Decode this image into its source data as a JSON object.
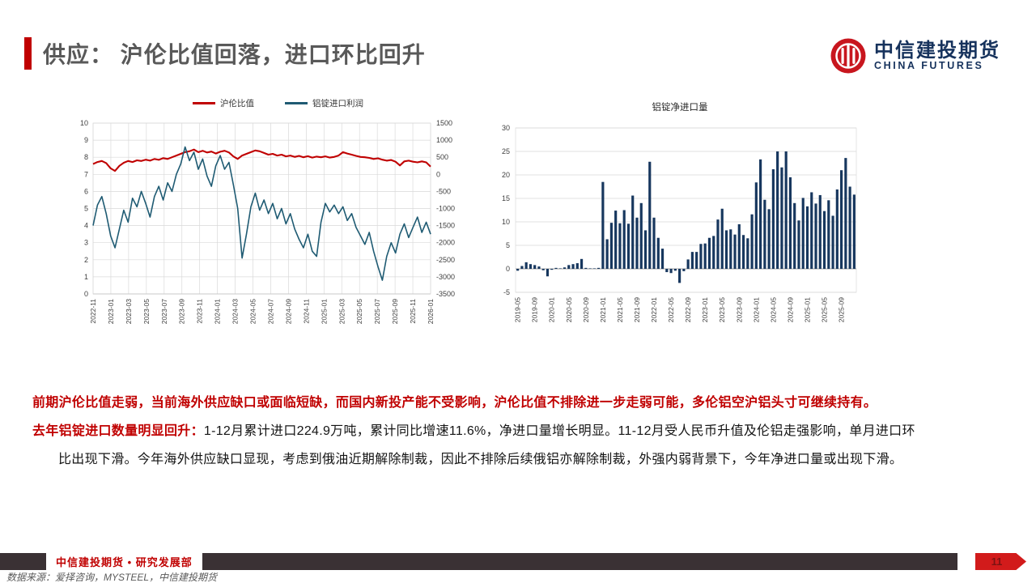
{
  "header": {
    "title": "供应： 沪伦比值回落，进口环比回升",
    "accent_color": "#c00000",
    "title_color": "#595959"
  },
  "logo": {
    "cn": "中信建投期货",
    "en": "CHINA FUTURES",
    "text_color": "#16325c",
    "mark_color": "#c8161e"
  },
  "chart_data": [
    {
      "type": "line",
      "legend_position": "top",
      "x_ticks": [
        "2022-11",
        "2023-01",
        "2023-03",
        "2023-05",
        "2023-07",
        "2023-09",
        "2023-11",
        "2024-01",
        "2024-03",
        "2024-05",
        "2024-07",
        "2024-09",
        "2024-11",
        "2025-01",
        "2025-03",
        "2025-05",
        "2025-07",
        "2025-09",
        "2025-11",
        "2026-01"
      ],
      "left_axis": {
        "min": 0,
        "max": 10,
        "step": 1
      },
      "right_axis": {
        "min": -3500,
        "max": 1500,
        "step": 500
      },
      "grid": "both",
      "series": [
        {
          "name": "沪伦比值",
          "color": "#c00000",
          "axis": "left",
          "values": [
            7.6,
            7.72,
            7.78,
            7.66,
            7.35,
            7.2,
            7.5,
            7.68,
            7.78,
            7.72,
            7.82,
            7.78,
            7.86,
            7.8,
            7.9,
            7.85,
            7.95,
            7.9,
            8.0,
            8.1,
            8.2,
            8.3,
            8.35,
            8.45,
            8.3,
            8.38,
            8.28,
            8.33,
            8.22,
            8.32,
            8.38,
            8.28,
            8.05,
            7.9,
            8.1,
            8.2,
            8.3,
            8.4,
            8.35,
            8.25,
            8.15,
            8.2,
            8.1,
            8.15,
            8.05,
            8.1,
            8.02,
            8.08,
            8.0,
            8.06,
            7.98,
            8.04,
            8.0,
            8.05,
            7.98,
            8.02,
            8.1,
            8.3,
            8.22,
            8.15,
            8.08,
            8.02,
            8.0,
            7.96,
            7.9,
            7.94,
            7.86,
            7.8,
            7.84,
            7.74,
            7.52,
            7.76,
            7.8,
            7.74,
            7.7,
            7.76,
            7.7,
            7.45
          ]
        },
        {
          "name": "铝锭进口利润",
          "color": "#1f5b73",
          "axis": "right",
          "values": [
            -1500,
            -900,
            -650,
            -1150,
            -1800,
            -2150,
            -1600,
            -1050,
            -1400,
            -700,
            -950,
            -500,
            -850,
            -1250,
            -650,
            -350,
            -750,
            -250,
            -500,
            0,
            300,
            800,
            400,
            650,
            150,
            450,
            -50,
            -350,
            250,
            550,
            150,
            350,
            -300,
            -1000,
            -2450,
            -1750,
            -950,
            -550,
            -1050,
            -750,
            -1150,
            -850,
            -1300,
            -1000,
            -1450,
            -1150,
            -1600,
            -1900,
            -2150,
            -1750,
            -2250,
            -2400,
            -1400,
            -850,
            -1100,
            -900,
            -1150,
            -950,
            -1350,
            -1150,
            -1550,
            -1800,
            -2050,
            -1700,
            -2250,
            -2700,
            -3100,
            -2400,
            -2000,
            -2300,
            -1750,
            -1450,
            -1850,
            -1550,
            -1250,
            -1700,
            -1400,
            -1750
          ]
        }
      ]
    },
    {
      "type": "bar",
      "title": "铝锭净进口量",
      "bar_color": "#17375e",
      "x_ticks": [
        "2019-05",
        "2019-09",
        "2020-01",
        "2020-05",
        "2020-09",
        "2021-01",
        "2021-05",
        "2021-09",
        "2022-01",
        "2022-05",
        "2022-09",
        "2023-01",
        "2023-05",
        "2023-09",
        "2024-01",
        "2024-05",
        "2024-09",
        "2025-01",
        "2025-05",
        "2025-09"
      ],
      "x_tick_every_n_bars": 4,
      "y_axis": {
        "min": -5,
        "max": 30,
        "step": 5
      },
      "grid": "horizontal",
      "values": [
        -0.4,
        0.6,
        1.4,
        1.0,
        0.8,
        0.5,
        -0.3,
        -1.6,
        -0.2,
        0.2,
        0.1,
        0.3,
        0.8,
        1.0,
        1.2,
        2.1,
        0.2,
        0.1,
        0.1,
        0.2,
        18.5,
        6.3,
        9.8,
        12.4,
        9.7,
        12.5,
        9.6,
        15.6,
        10.9,
        14.0,
        8.2,
        22.8,
        10.9,
        6.6,
        4.3,
        -0.7,
        -0.9,
        -0.4,
        -3.0,
        -0.5,
        2.0,
        3.6,
        3.6,
        5.3,
        5.4,
        6.6,
        7.0,
        10.5,
        12.8,
        8.2,
        8.4,
        7.3,
        9.5,
        7.2,
        6.5,
        11.6,
        18.4,
        23.3,
        14.7,
        12.7,
        21.2,
        25.0,
        21.6,
        25.0,
        19.5,
        14.0,
        10.3,
        15.1,
        13.3,
        16.3,
        13.9,
        15.7,
        12.3,
        14.6,
        11.3,
        16.9,
        21.0,
        23.6,
        17.5,
        15.8
      ]
    }
  ],
  "body": {
    "line1": "前期沪伦比值走弱，当前海外供应缺口或面临短缺，而国内新投产能不受影响，沪伦比值不排除进一步走弱可能，多伦铝空沪铝头寸可继续持有。",
    "line2_lead": "去年铝锭进口数量明显回升：",
    "line2_rest": "1-12月累计进口224.9万吨，累计同比增速11.6%，净进口量增长明显。11-12月受人民币升值及伦铝走强影响，单月进口环",
    "line3": "比出现下滑。今年海外供应缺口显现，考虑到俄油近期解除制裁，因此不排除后续俄铝亦解除制裁，外强内弱背景下，今年净进口量或出现下滑。"
  },
  "footer": {
    "dept_label": "中信建投期货 • 研究发展部",
    "source": "数据来源：爱择咨询，MYSTEEL，中信建投期货",
    "page_number": "11",
    "bar_color": "#3a3134",
    "tag_color": "#d21b1b"
  }
}
